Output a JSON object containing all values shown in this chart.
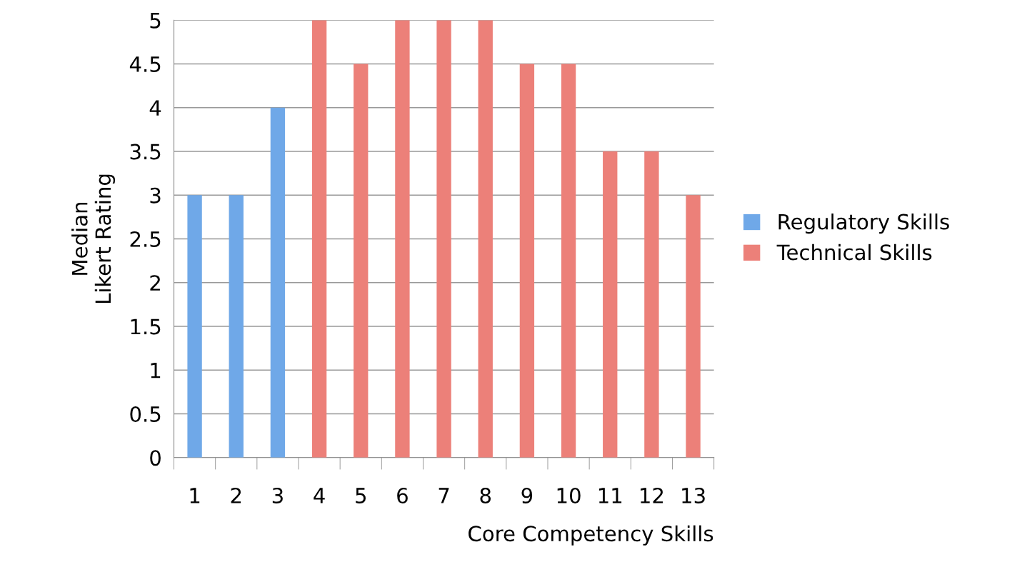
{
  "chart_data": {
    "type": "bar",
    "xlabel": "Core Competency Skills",
    "ylabel": "Median\nLikert Rating",
    "categories": [
      "1",
      "2",
      "3",
      "4",
      "5",
      "6",
      "7",
      "8",
      "9",
      "10",
      "11",
      "12",
      "13"
    ],
    "series": [
      {
        "name": "Regulatory Skills",
        "color": "#6fa8e8",
        "values": [
          3,
          3,
          4,
          null,
          null,
          null,
          null,
          null,
          null,
          null,
          null,
          null,
          null
        ]
      },
      {
        "name": "Technical Skills",
        "color": "#ec8079",
        "values": [
          null,
          null,
          null,
          5,
          4.5,
          5,
          5,
          5,
          4.5,
          4.5,
          3.5,
          3.5,
          3
        ]
      }
    ],
    "ylim": [
      0,
      5
    ],
    "yticks": [
      0,
      0.5,
      1,
      1.5,
      2,
      2.5,
      3,
      3.5,
      4,
      4.5,
      5
    ],
    "grid": "y",
    "legend": "right"
  }
}
